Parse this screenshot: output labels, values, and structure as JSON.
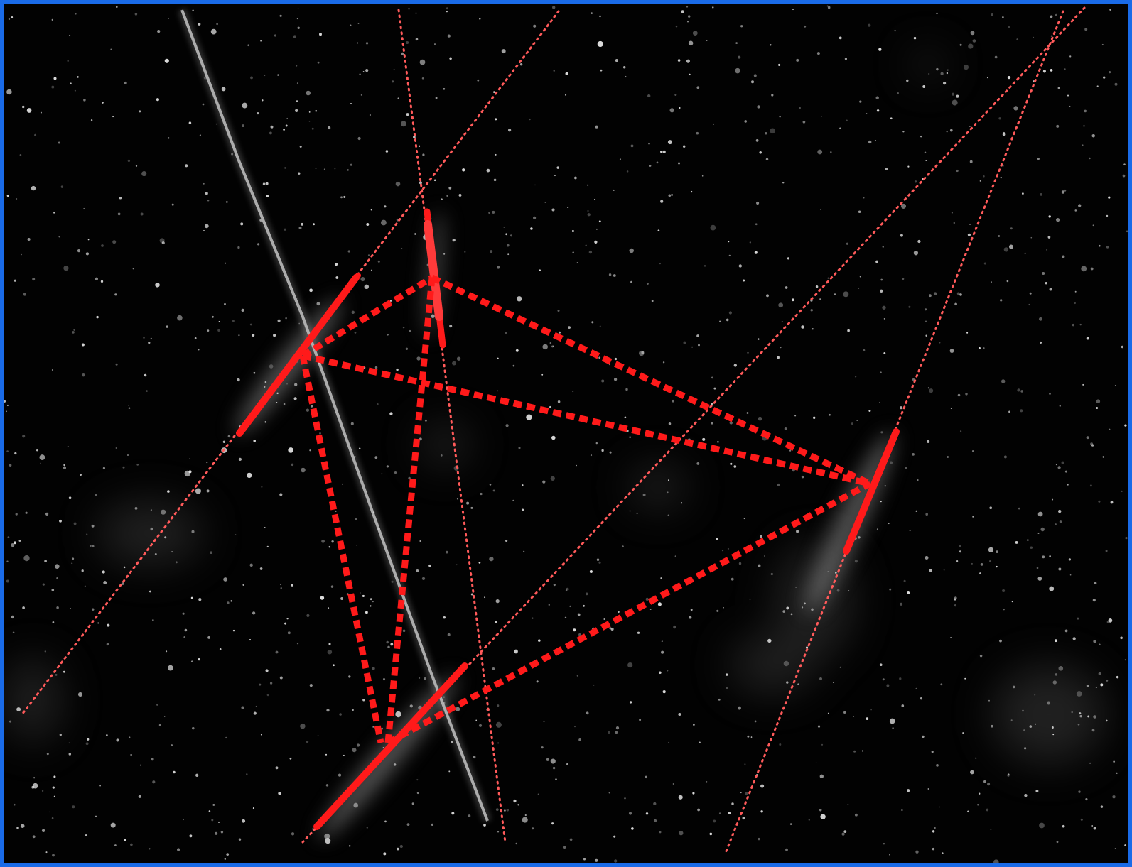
{
  "image": {
    "kind": "microscopy-fluorescence",
    "subject": "filaments-with-speckle-background"
  },
  "colors": {
    "background": "#020202",
    "frame_border": "#1a6be8",
    "filament_glow": "#cfcfcf",
    "annotation_red": "#ff1a1a",
    "extension_red": "#ff5a5a",
    "speckle": "#e8e8e8"
  },
  "annotations": {
    "highlighted_segments": 4,
    "connection_style": "thick-dotted",
    "extension_style": "thin-dotted"
  }
}
